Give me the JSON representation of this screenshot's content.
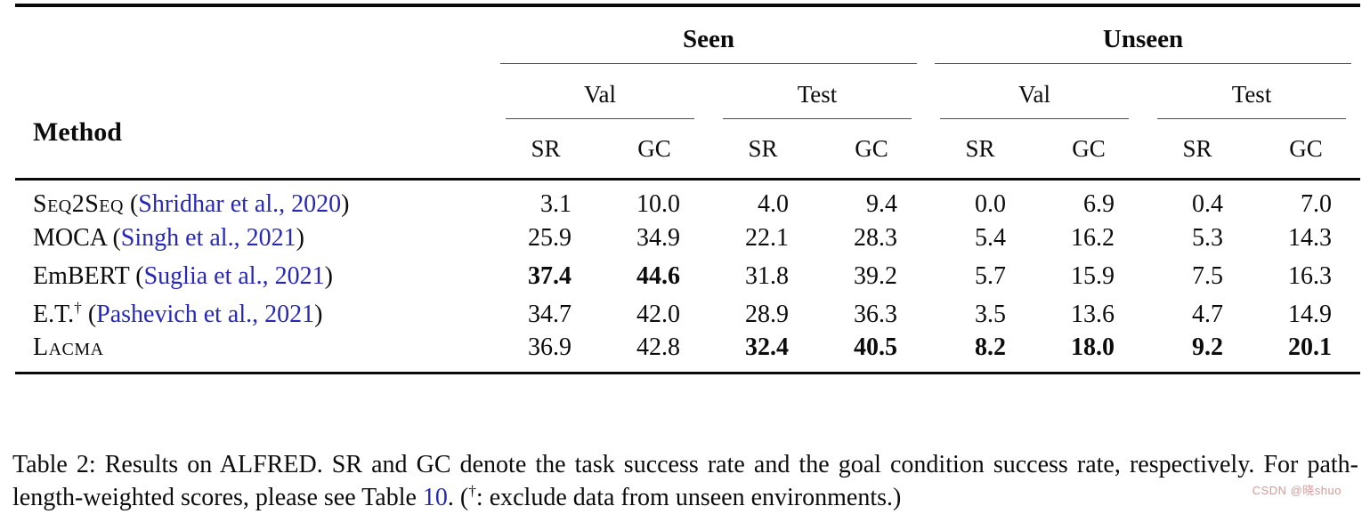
{
  "table": {
    "method_header": "Method",
    "groups": [
      {
        "label": "Seen"
      },
      {
        "label": "Unseen"
      }
    ],
    "subgroups": [
      "Val",
      "Test",
      "Val",
      "Test"
    ],
    "metrics": [
      "SR",
      "GC",
      "SR",
      "GC",
      "SR",
      "GC",
      "SR",
      "GC"
    ],
    "rows": [
      {
        "method": "Seq2Seq",
        "smallcaps": true,
        "dagger": false,
        "citation": "Shridhar et al., 2020",
        "values": [
          "3.1",
          "10.0",
          "4.0",
          "9.4",
          "0.0",
          "6.9",
          "0.4",
          "7.0"
        ],
        "bold": [
          false,
          false,
          false,
          false,
          false,
          false,
          false,
          false
        ]
      },
      {
        "method": "MOCA",
        "smallcaps": false,
        "dagger": false,
        "citation": "Singh et al., 2021",
        "values": [
          "25.9",
          "34.9",
          "22.1",
          "28.3",
          "5.4",
          "16.2",
          "5.3",
          "14.3"
        ],
        "bold": [
          false,
          false,
          false,
          false,
          false,
          false,
          false,
          false
        ]
      },
      {
        "method": "EmBERT",
        "smallcaps": false,
        "dagger": false,
        "citation": "Suglia et al., 2021",
        "values": [
          "37.4",
          "44.6",
          "31.8",
          "39.2",
          "5.7",
          "15.9",
          "7.5",
          "16.3"
        ],
        "bold": [
          true,
          true,
          false,
          false,
          false,
          false,
          false,
          false
        ]
      },
      {
        "method": "E.T.",
        "smallcaps": false,
        "dagger": true,
        "citation": "Pashevich et al., 2021",
        "values": [
          "34.7",
          "42.0",
          "28.9",
          "36.3",
          "3.5",
          "13.6",
          "4.7",
          "14.9"
        ],
        "bold": [
          false,
          false,
          false,
          false,
          false,
          false,
          false,
          false
        ]
      },
      {
        "method": "Lacma",
        "smallcaps": true,
        "dagger": false,
        "citation": "",
        "values": [
          "36.9",
          "42.8",
          "32.4",
          "40.5",
          "8.2",
          "18.0",
          "9.2",
          "20.1"
        ],
        "bold": [
          false,
          false,
          true,
          true,
          true,
          true,
          true,
          true
        ]
      }
    ]
  },
  "caption": {
    "text_before_link": "Table 2:  Results on ALFRED. SR and GC denote the task success rate and the goal condition success rate, respectively. For path-length-weighted scores, please see Table ",
    "link_text": "10",
    "text_after_link": ". (",
    "dagger": "†",
    "text_end": ": exclude data from unseen environments.)"
  },
  "watermark": "CSDN @晓shuo",
  "colors": {
    "link_blue": "#2727b8",
    "rule_black": "#0a0a0a",
    "watermark_pink": "#d09692"
  }
}
